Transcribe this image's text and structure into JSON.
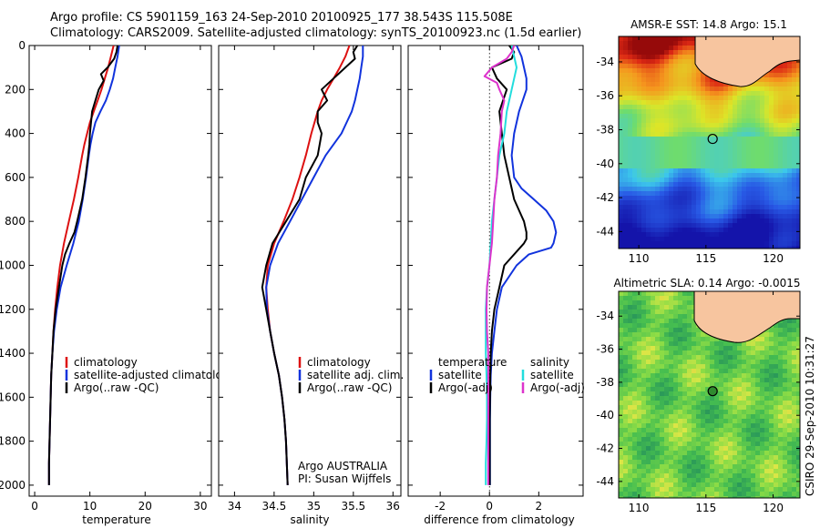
{
  "header": {
    "line1": "Argo profile: CS 5901159_163 24-Sep-2010 20100925_177 38.543S 115.508E",
    "line2": "Climatology: CARS2009. Satellite-adjusted climatology: synTS_20100923.nc (1.5d earlier)"
  },
  "colors": {
    "climatology": "#dd1111",
    "satellite": "#1133dd",
    "argo": "#000000",
    "salinity_satellite": "#22dddd",
    "salinity_argo": "#dd33cc",
    "land": "#f7c59f"
  },
  "chart_data": [
    {
      "type": "line",
      "id": "temperature",
      "xlabel": "temperature",
      "xlim": [
        -1,
        32
      ],
      "ylim": [
        2050,
        0
      ],
      "xticks": [
        0,
        10,
        20,
        30
      ],
      "yticks": [
        0,
        200,
        400,
        600,
        800,
        1000,
        1200,
        1400,
        1600,
        1800,
        2000
      ],
      "legend": [
        "climatology",
        "satellite-adjusted climatology",
        "Argo(..raw -QC)"
      ],
      "series": [
        {
          "name": "climatology",
          "key": "climatology",
          "depth": [
            0,
            50,
            100,
            150,
            200,
            250,
            300,
            350,
            400,
            450,
            500,
            600,
            700,
            800,
            900,
            1000,
            1100,
            1200,
            1300,
            1400,
            1500,
            1600,
            1700,
            1800,
            1900,
            2000
          ],
          "values": [
            14.3,
            13.8,
            13.3,
            12.7,
            12.1,
            11.4,
            10.7,
            10.0,
            9.5,
            9.0,
            8.6,
            7.9,
            7.1,
            6.2,
            5.3,
            4.6,
            4.1,
            3.7,
            3.4,
            3.2,
            3.0,
            2.9,
            2.8,
            2.7,
            2.6,
            2.6
          ]
        },
        {
          "name": "satellite-adjusted climatology",
          "key": "satellite",
          "depth": [
            0,
            50,
            100,
            150,
            200,
            250,
            300,
            350,
            400,
            450,
            500,
            600,
            700,
            800,
            900,
            1000,
            1100,
            1200,
            1300,
            1400,
            1500,
            1600,
            1700,
            1800,
            1900,
            2000
          ],
          "values": [
            15.3,
            15.0,
            14.6,
            14.2,
            13.6,
            12.9,
            11.9,
            11.0,
            10.5,
            10.1,
            9.8,
            9.3,
            8.7,
            8.0,
            7.0,
            5.8,
            4.7,
            4.0,
            3.5,
            3.2,
            3.0,
            2.9,
            2.8,
            2.7,
            2.6,
            2.6
          ]
        },
        {
          "name": "Argo(..raw -QC)",
          "key": "argo",
          "depth": [
            0,
            30,
            60,
            100,
            130,
            160,
            200,
            250,
            300,
            350,
            400,
            450,
            500,
            600,
            700,
            800,
            850,
            900,
            950,
            1000,
            1100,
            1200,
            1300,
            1400,
            1500,
            1600,
            1700,
            1800,
            1900,
            2000
          ],
          "values": [
            15.0,
            14.8,
            14.4,
            13.2,
            12.0,
            12.5,
            11.6,
            11.0,
            10.4,
            10.2,
            10.0,
            9.9,
            9.7,
            9.2,
            8.6,
            7.7,
            7.2,
            6.3,
            5.5,
            5.0,
            4.4,
            3.8,
            3.4,
            3.2,
            3.0,
            2.9,
            2.8,
            2.7,
            2.6,
            2.6
          ]
        }
      ]
    },
    {
      "type": "line",
      "id": "salinity",
      "xlabel": "salinity",
      "xlim": [
        33.8,
        36.1
      ],
      "ylim": [
        2050,
        0
      ],
      "xticks": [
        34,
        34.5,
        35,
        35.5,
        36
      ],
      "legend": [
        "climatology",
        "satellite adj. clim.",
        "Argo(..raw -QC)"
      ],
      "annotation": [
        "Argo AUSTRALIA",
        "PI: Susan Wijffels"
      ],
      "series": [
        {
          "name": "climatology",
          "key": "climatology",
          "depth": [
            0,
            50,
            100,
            150,
            200,
            250,
            300,
            400,
            500,
            600,
            700,
            800,
            900,
            1000,
            1100,
            1200,
            1300,
            1400,
            1500,
            1600,
            1700,
            1800,
            1900,
            2000
          ],
          "values": [
            35.45,
            35.4,
            35.33,
            35.25,
            35.17,
            35.1,
            35.05,
            34.97,
            34.9,
            34.82,
            34.73,
            34.62,
            34.5,
            34.42,
            34.4,
            34.42,
            34.45,
            34.5,
            34.56,
            34.6,
            34.63,
            34.65,
            34.66,
            34.67
          ]
        },
        {
          "name": "satellite adj. clim.",
          "key": "satellite",
          "depth": [
            0,
            50,
            100,
            150,
            200,
            250,
            300,
            400,
            500,
            600,
            700,
            800,
            900,
            1000,
            1100,
            1200,
            1300,
            1400,
            1500,
            1600,
            1700,
            1800,
            1900,
            2000
          ],
          "values": [
            35.62,
            35.62,
            35.6,
            35.58,
            35.55,
            35.52,
            35.48,
            35.35,
            35.15,
            35.0,
            34.85,
            34.7,
            34.55,
            34.45,
            34.4,
            34.41,
            34.45,
            34.5,
            34.56,
            34.6,
            34.63,
            34.65,
            34.66,
            34.67
          ]
        },
        {
          "name": "Argo(..raw -QC)",
          "key": "argo",
          "depth": [
            0,
            30,
            60,
            100,
            150,
            200,
            250,
            300,
            350,
            400,
            500,
            600,
            700,
            800,
            900,
            1000,
            1100,
            1200,
            1300,
            1400,
            1500,
            1600,
            1700,
            1800,
            1900,
            2000
          ],
          "values": [
            35.55,
            35.5,
            35.52,
            35.4,
            35.25,
            35.1,
            35.17,
            35.05,
            35.05,
            35.1,
            35.05,
            34.9,
            34.82,
            34.65,
            34.48,
            34.4,
            34.35,
            34.4,
            34.45,
            34.5,
            34.56,
            34.6,
            34.63,
            34.65,
            34.66,
            34.67
          ]
        }
      ]
    },
    {
      "type": "line",
      "id": "difference",
      "xlabel": "difference from climatology",
      "xlim": [
        -3.3,
        3.8
      ],
      "ylim": [
        2050,
        0
      ],
      "xticks": [
        -2,
        0,
        2
      ],
      "legend_left": [
        "temperature",
        "satellite",
        "Argo(-adj)"
      ],
      "legend_right": [
        "salinity",
        "satellite",
        "Argo(-adj)"
      ],
      "series": [
        {
          "name": "satellite",
          "group": "temperature",
          "key": "satellite",
          "depth": [
            0,
            50,
            100,
            150,
            200,
            300,
            400,
            500,
            600,
            650,
            700,
            750,
            800,
            850,
            900,
            920,
            950,
            1000,
            1100,
            1200,
            1300,
            1400,
            1500,
            1600,
            1700,
            1800,
            1900,
            2000
          ],
          "values": [
            1.1,
            1.3,
            1.4,
            1.5,
            1.5,
            1.2,
            1.0,
            0.9,
            1.0,
            1.3,
            1.8,
            2.3,
            2.6,
            2.7,
            2.6,
            2.5,
            1.6,
            1.1,
            0.5,
            0.3,
            0.2,
            0.1,
            0.05,
            0.03,
            0.02,
            0.02,
            0.02,
            0.02
          ]
        },
        {
          "name": "Argo(-adj)",
          "group": "temperature",
          "key": "argo",
          "depth": [
            0,
            30,
            60,
            100,
            150,
            200,
            300,
            400,
            500,
            600,
            700,
            750,
            800,
            850,
            880,
            900,
            1000,
            1100,
            1200,
            1300,
            1400,
            1500,
            1600,
            1700,
            1800,
            1900,
            2000
          ],
          "values": [
            0.8,
            1.0,
            0.9,
            0.1,
            0.3,
            0.7,
            0.4,
            0.5,
            0.6,
            0.8,
            1.0,
            1.2,
            1.4,
            1.5,
            1.5,
            1.4,
            0.6,
            0.4,
            0.2,
            0.1,
            0.05,
            0.03,
            0.02,
            0.01,
            0.01,
            0.01,
            0.01
          ]
        },
        {
          "name": "satellite",
          "group": "salinity",
          "key": "salinity_satellite",
          "depth": [
            0,
            50,
            100,
            150,
            200,
            300,
            400,
            500,
            600,
            700,
            800,
            900,
            1000,
            1100,
            1200,
            1300,
            1400,
            1500,
            1600,
            1700,
            1800,
            1900,
            2000
          ],
          "values": [
            0.9,
            1.0,
            1.1,
            1.0,
            0.9,
            0.7,
            0.6,
            0.4,
            0.3,
            0.2,
            0.1,
            0.05,
            0.0,
            -0.1,
            -0.15,
            -0.15,
            -0.15,
            -0.12,
            -0.1,
            -0.1,
            -0.12,
            -0.15,
            -0.15
          ]
        },
        {
          "name": "Argo(-adj)",
          "group": "salinity",
          "key": "salinity_argo",
          "depth": [
            0,
            30,
            60,
            100,
            140,
            170,
            200,
            250,
            300,
            400,
            500,
            600,
            700,
            800,
            900,
            1000,
            1100,
            1200,
            1300,
            1400,
            1500,
            1600,
            1700,
            1800,
            1900,
            2000
          ],
          "values": [
            1.0,
            0.9,
            0.7,
            0.1,
            -0.2,
            0.3,
            0.4,
            0.6,
            0.5,
            0.45,
            0.35,
            0.3,
            0.2,
            0.15,
            0.1,
            0.0,
            -0.1,
            -0.12,
            -0.1,
            -0.05,
            -0.05,
            -0.05,
            -0.05,
            -0.05,
            -0.05,
            -0.05
          ]
        }
      ]
    },
    {
      "type": "heatmap",
      "id": "sst_map",
      "title": "AMSR-E SST: 14.8 Argo: 15.1",
      "xlim": [
        108.5,
        122
      ],
      "ylim": [
        -45,
        -32.5
      ],
      "xticks": [
        110,
        115,
        120
      ],
      "yticks": [
        -34,
        -36,
        -38,
        -40,
        -42,
        -44
      ],
      "argo_point": {
        "lon": 115.5,
        "lat": -38.54
      }
    },
    {
      "type": "heatmap",
      "id": "sla_map",
      "title": "Altimetric SLA: 0.14 Argo: -0.0015",
      "xlim": [
        108.5,
        122
      ],
      "ylim": [
        -45,
        -32.5
      ],
      "xticks": [
        110,
        115,
        120
      ],
      "yticks": [
        -34,
        -36,
        -38,
        -40,
        -42,
        -44
      ],
      "argo_point": {
        "lon": 115.5,
        "lat": -38.54
      }
    }
  ],
  "side_label": "CSIRO 29-Sep-2010 10:31:27"
}
